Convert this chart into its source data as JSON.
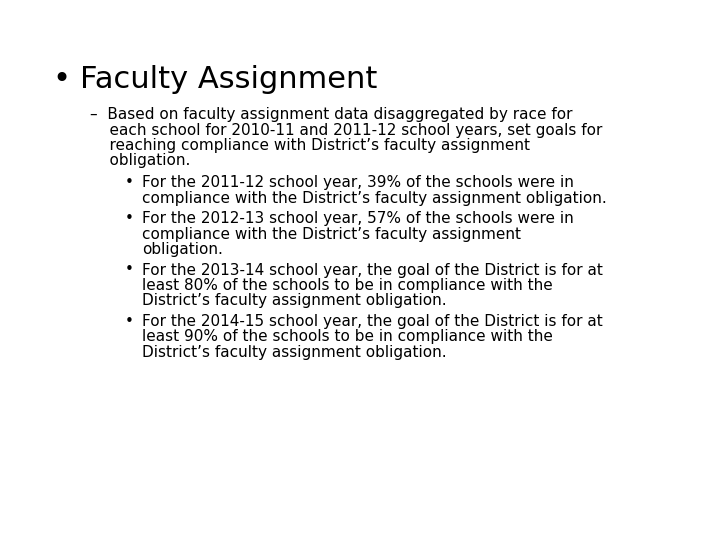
{
  "background_color": "#ffffff",
  "text_color": "#000000",
  "title": "Faculty Assignment",
  "title_fontsize": 22,
  "body_fontsize": 11,
  "font_family": "DejaVu Sans",
  "title_bullet": "•",
  "dash_lines": [
    "–  Based on faculty assignment data disaggregated by race for",
    "    each school for 2010-11 and 2011-12 school years, set goals for",
    "    reaching compliance with District’s faculty assignment",
    "    obligation."
  ],
  "sub_bullets": [
    [
      "For the 2011-12 school year, 39% of the schools were in",
      "compliance with the District’s faculty assignment obligation."
    ],
    [
      "For the 2012-13 school year, 57% of the schools were in",
      "compliance with the District’s faculty assignment",
      "obligation."
    ],
    [
      "For the 2013-14 school year, the goal of the District is for at",
      "least 80% of the schools to be in compliance with the",
      "District’s faculty assignment obligation."
    ],
    [
      "For the 2014-15 school year, the goal of the District is for at",
      "least 90% of the schools to be in compliance with the",
      "District’s faculty assignment obligation."
    ]
  ]
}
